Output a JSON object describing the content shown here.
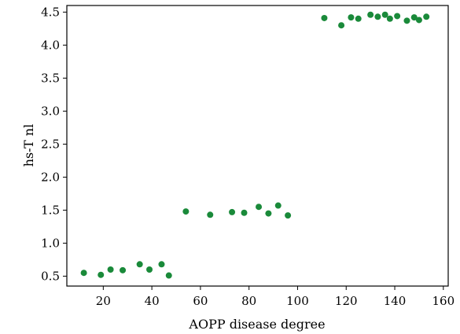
{
  "chart_data": {
    "type": "scatter",
    "title": "",
    "xlabel": "AOPP disease degree",
    "ylabel": "hs-T nl",
    "xlim": [
      5,
      162
    ],
    "ylim": [
      0.35,
      4.6
    ],
    "xticks": [
      20,
      40,
      60,
      80,
      100,
      120,
      140,
      160
    ],
    "yticks": [
      0.5,
      1.0,
      1.5,
      2.0,
      2.5,
      3.0,
      3.5,
      4.0,
      4.5
    ],
    "xtick_labels": [
      "20",
      "40",
      "60",
      "80",
      "100",
      "120",
      "140",
      "160"
    ],
    "ytick_labels": [
      "0.5",
      "1.0",
      "1.5",
      "2.0",
      "2.5",
      "3.0",
      "3.5",
      "4.0",
      "4.5"
    ],
    "grid": false,
    "legend": "none",
    "point_color": "#1a8a3a",
    "series": [
      {
        "x": [
          12,
          19,
          23,
          28,
          35,
          39,
          44,
          47,
          54,
          64,
          73,
          78,
          84,
          88,
          92,
          96,
          111,
          118,
          122,
          125,
          130,
          133,
          136,
          138,
          141,
          145,
          148,
          150,
          153
        ],
        "y": [
          0.55,
          0.52,
          0.6,
          0.59,
          0.68,
          0.6,
          0.68,
          0.51,
          1.48,
          1.43,
          1.47,
          1.46,
          1.55,
          1.45,
          1.57,
          1.42,
          4.41,
          4.3,
          4.42,
          4.4,
          4.46,
          4.43,
          4.46,
          4.4,
          4.44,
          4.37,
          4.42,
          4.38,
          4.43
        ]
      }
    ]
  }
}
